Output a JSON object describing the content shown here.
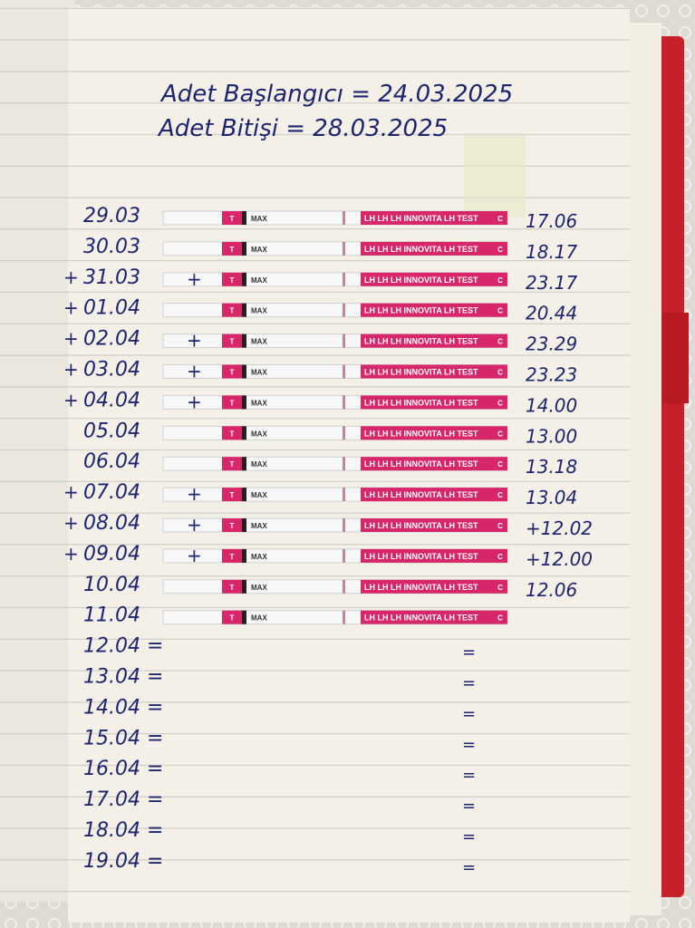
{
  "header": {
    "lines": [
      "Adet Başlangıcı = 24.03.2025",
      "Adet Bitişi = 28.03.2025"
    ]
  },
  "strip": {
    "brand": "LH LH LH INNOVITA LH TEST",
    "t": "T",
    "max": "MAX",
    "c": "C"
  },
  "rows": [
    {
      "date": "29.03",
      "time": "17.06",
      "strip": true
    },
    {
      "date": "30.03",
      "time": "18.17",
      "strip": true
    },
    {
      "prefix": "+",
      "date": "31.03",
      "strip_mark": "+",
      "time": "23.17",
      "strip": true
    },
    {
      "prefix": "+",
      "date": "01.04",
      "time": "20.44",
      "strip": true
    },
    {
      "prefix": "+",
      "date": "02.04",
      "strip_mark": "+",
      "time": "23.29",
      "strip": true
    },
    {
      "prefix": "+",
      "date": "03.04",
      "strip_mark": "+",
      "time": "23.23",
      "strip": true
    },
    {
      "prefix": "+",
      "date": "04.04",
      "strip_mark": "+",
      "time": "14.00",
      "strip": true
    },
    {
      "date": "05.04",
      "time": "13.00",
      "strip": true
    },
    {
      "date": "06.04",
      "time": "13.18",
      "strip": true
    },
    {
      "prefix": "+",
      "date": "07.04",
      "strip_mark": "+",
      "time": "13.04",
      "strip": true
    },
    {
      "prefix": "+",
      "date": "08.04",
      "strip_mark": "+",
      "time": "+12.02",
      "strip": true
    },
    {
      "prefix": "+",
      "date": "09.04",
      "strip_mark": "+",
      "time": "+12.00",
      "strip": true
    },
    {
      "date": "10.04",
      "time": "12.06",
      "strip": true
    },
    {
      "date": "11.04",
      "strip": true
    },
    {
      "date": "12.04 =",
      "mark": "="
    },
    {
      "date": "13.04 =",
      "mark": "="
    },
    {
      "date": "14.04 =",
      "mark": "="
    },
    {
      "date": "15.04 =",
      "mark": "="
    },
    {
      "date": "16.04 =",
      "mark": "="
    },
    {
      "date": "17.04 =",
      "mark": "="
    },
    {
      "date": "18.04 =",
      "mark": "="
    },
    {
      "date": "19.04 =",
      "mark": "="
    }
  ]
}
